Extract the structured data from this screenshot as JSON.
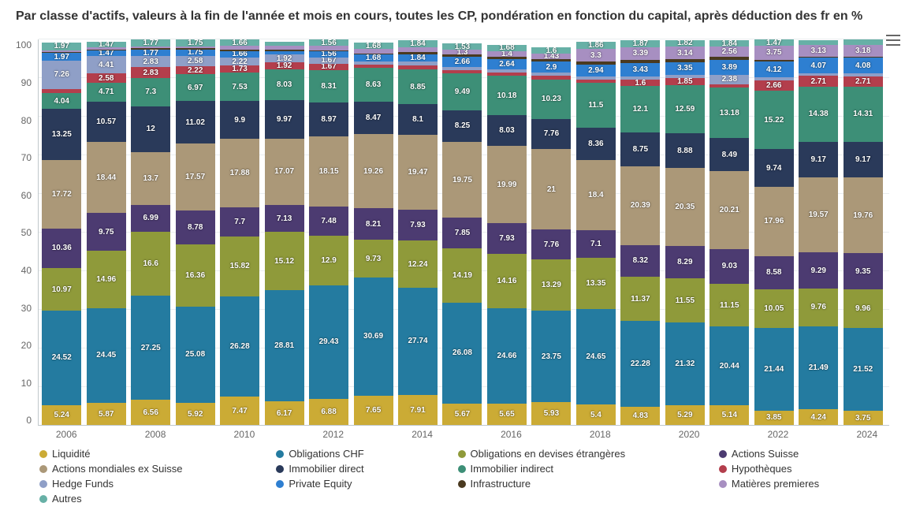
{
  "title": "Par classe d'actifs, valeurs à la fin de l'année et mois en cours, toutes les CP, pondération en fonction du capital, après déduction des fr\nen %",
  "chart": {
    "type": "stacked-bar",
    "background_color": "#ffffff",
    "grid_color": "#eaedef",
    "axis_color": "#c0c8cb",
    "tick_color": "#666666",
    "tick_fontsize": 12,
    "label_fontsize": 10,
    "label_color": "#ffffff",
    "label_min_value": 1.3,
    "ylim": [
      0,
      100
    ],
    "ytick_step": 10,
    "bar_width": 0.85,
    "categories": [
      "2006",
      "2007",
      "2008",
      "2009",
      "2010",
      "2011",
      "2012",
      "2013",
      "2014",
      "2015",
      "2016",
      "2017",
      "2018",
      "2019",
      "2020",
      "2021",
      "2022",
      "2023",
      "2024"
    ],
    "x_ticks_visible": [
      "2006",
      "2008",
      "2010",
      "2012",
      "2014",
      "2016",
      "2018",
      "2020",
      "2022",
      "2024"
    ],
    "series": [
      {
        "name": "Liquidité",
        "color": "#cbab35"
      },
      {
        "name": "Obligations CHF",
        "color": "#247ba0"
      },
      {
        "name": "Obligations en devises étrangères",
        "color": "#8f9a3a"
      },
      {
        "name": "Actions Suisse",
        "color": "#4c3b71"
      },
      {
        "name": "Actions mondiales ex Suisse",
        "color": "#ab9878"
      },
      {
        "name": "Immobilier direct",
        "color": "#2a3a5a"
      },
      {
        "name": "Immobilier indirect",
        "color": "#3d8f77"
      },
      {
        "name": "Hypothèques",
        "color": "#b33e4c"
      },
      {
        "name": "Hedge Funds",
        "color": "#8f9fc7"
      },
      {
        "name": "Private Equity",
        "color": "#2e7fd1"
      },
      {
        "name": "Infrastructure",
        "color": "#4a3a20"
      },
      {
        "name": "Matières premieres",
        "color": "#a78fc1"
      },
      {
        "name": "Autres",
        "color": "#67b0a6"
      }
    ],
    "data": {
      "2006": [
        5.24,
        24.52,
        10.97,
        10.36,
        17.72,
        13.25,
        4.04,
        1.2,
        7.26,
        1.97,
        0.3,
        0.5,
        1.97
      ],
      "2007": [
        5.87,
        24.45,
        14.96,
        9.75,
        18.44,
        10.57,
        4.71,
        2.58,
        4.41,
        1.47,
        0.3,
        0.5,
        1.47
      ],
      "2008": [
        6.56,
        27.25,
        16.6,
        6.99,
        13.7,
        12.0,
        7.3,
        2.83,
        2.83,
        1.77,
        0.3,
        0.5,
        1.77
      ],
      "2009": [
        5.92,
        25.08,
        16.36,
        8.78,
        17.57,
        11.02,
        6.97,
        2.22,
        2.58,
        1.75,
        0.3,
        0.5,
        1.75
      ],
      "2010": [
        7.47,
        26.28,
        15.82,
        7.7,
        17.88,
        9.9,
        7.53,
        1.73,
        2.22,
        1.66,
        0.31,
        1.0,
        1.66
      ],
      "2011": [
        6.17,
        28.81,
        15.12,
        7.13,
        17.07,
        9.97,
        8.03,
        1.92,
        1.92,
        0.99,
        0.31,
        1.0,
        0.99
      ],
      "2012": [
        6.88,
        29.43,
        12.9,
        7.48,
        18.15,
        8.97,
        8.31,
        1.67,
        1.67,
        1.56,
        0.31,
        1.11,
        1.56
      ],
      "2013": [
        7.65,
        30.69,
        9.73,
        8.21,
        19.26,
        8.47,
        8.63,
        0.9,
        0.9,
        1.68,
        0.4,
        1.1,
        1.68
      ],
      "2014": [
        7.91,
        27.74,
        12.24,
        7.93,
        19.47,
        8.1,
        8.85,
        1.11,
        1.11,
        1.84,
        0.5,
        1.2,
        1.84
      ],
      "2015": [
        5.67,
        26.08,
        14.19,
        7.85,
        19.75,
        8.25,
        9.49,
        0.9,
        0.8,
        2.66,
        0.53,
        1.3,
        1.53
      ],
      "2016": [
        5.65,
        24.66,
        14.16,
        7.93,
        19.99,
        8.03,
        10.18,
        0.9,
        0.8,
        2.64,
        0.68,
        1.4,
        1.68
      ],
      "2017": [
        5.93,
        23.75,
        13.29,
        7.76,
        21.0,
        7.76,
        10.23,
        0.95,
        0.8,
        2.9,
        0.6,
        1.43,
        1.6
      ],
      "2018": [
        5.4,
        24.65,
        13.35,
        7.1,
        18.4,
        8.36,
        11.5,
        0.9,
        0.85,
        2.94,
        0.86,
        3.3,
        1.86
      ],
      "2019": [
        4.83,
        22.28,
        11.37,
        8.32,
        20.39,
        8.75,
        12.1,
        1.6,
        0.8,
        3.43,
        0.87,
        3.39,
        1.87
      ],
      "2020": [
        5.29,
        21.32,
        11.55,
        8.29,
        20.35,
        8.88,
        12.59,
        1.85,
        0.75,
        3.35,
        0.82,
        3.14,
        1.82
      ],
      "2021": [
        5.14,
        20.44,
        11.15,
        9.03,
        20.21,
        8.49,
        13.18,
        0.85,
        2.38,
        3.89,
        0.84,
        2.56,
        1.84
      ],
      "2022": [
        3.85,
        21.44,
        10.05,
        8.58,
        17.96,
        9.74,
        15.22,
        2.66,
        0.69,
        4.12,
        0.47,
        3.75,
        1.47
      ],
      "2023": [
        4.24,
        21.49,
        9.76,
        9.29,
        19.57,
        9.17,
        14.38,
        2.71,
        0.69,
        4.07,
        0.25,
        3.13,
        1.25
      ],
      "2024": [
        3.75,
        21.52,
        9.96,
        9.35,
        19.76,
        9.17,
        14.31,
        2.71,
        0.69,
        4.08,
        0.26,
        3.18,
        1.26
      ]
    }
  }
}
